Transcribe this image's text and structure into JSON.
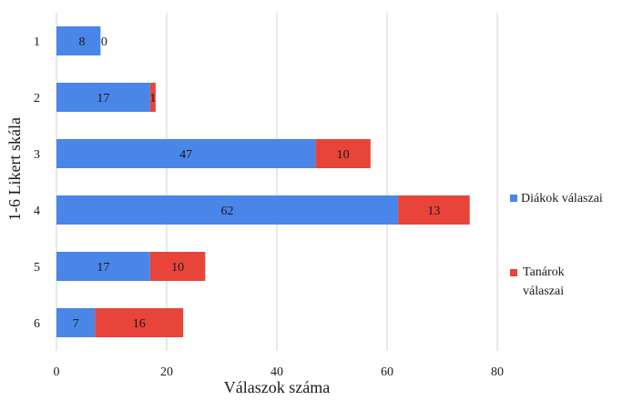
{
  "chart_data": {
    "type": "bar",
    "orientation": "horizontal",
    "stacked": true,
    "categories": [
      "1",
      "2",
      "3",
      "4",
      "5",
      "6"
    ],
    "series": [
      {
        "name": "Diákok válaszai",
        "values": [
          8,
          17,
          47,
          62,
          17,
          7
        ],
        "color": "#4a86e8"
      },
      {
        "name": "Tanárok válaszai",
        "values": [
          0,
          1,
          10,
          13,
          10,
          16
        ],
        "color": "#e8443a"
      }
    ],
    "xlabel": "Válaszok száma",
    "ylabel": "1-6 Likert skála",
    "xlim": [
      0,
      80
    ],
    "xticks": [
      0,
      20,
      40,
      60,
      80
    ],
    "grid": true,
    "legend_position": "right"
  }
}
